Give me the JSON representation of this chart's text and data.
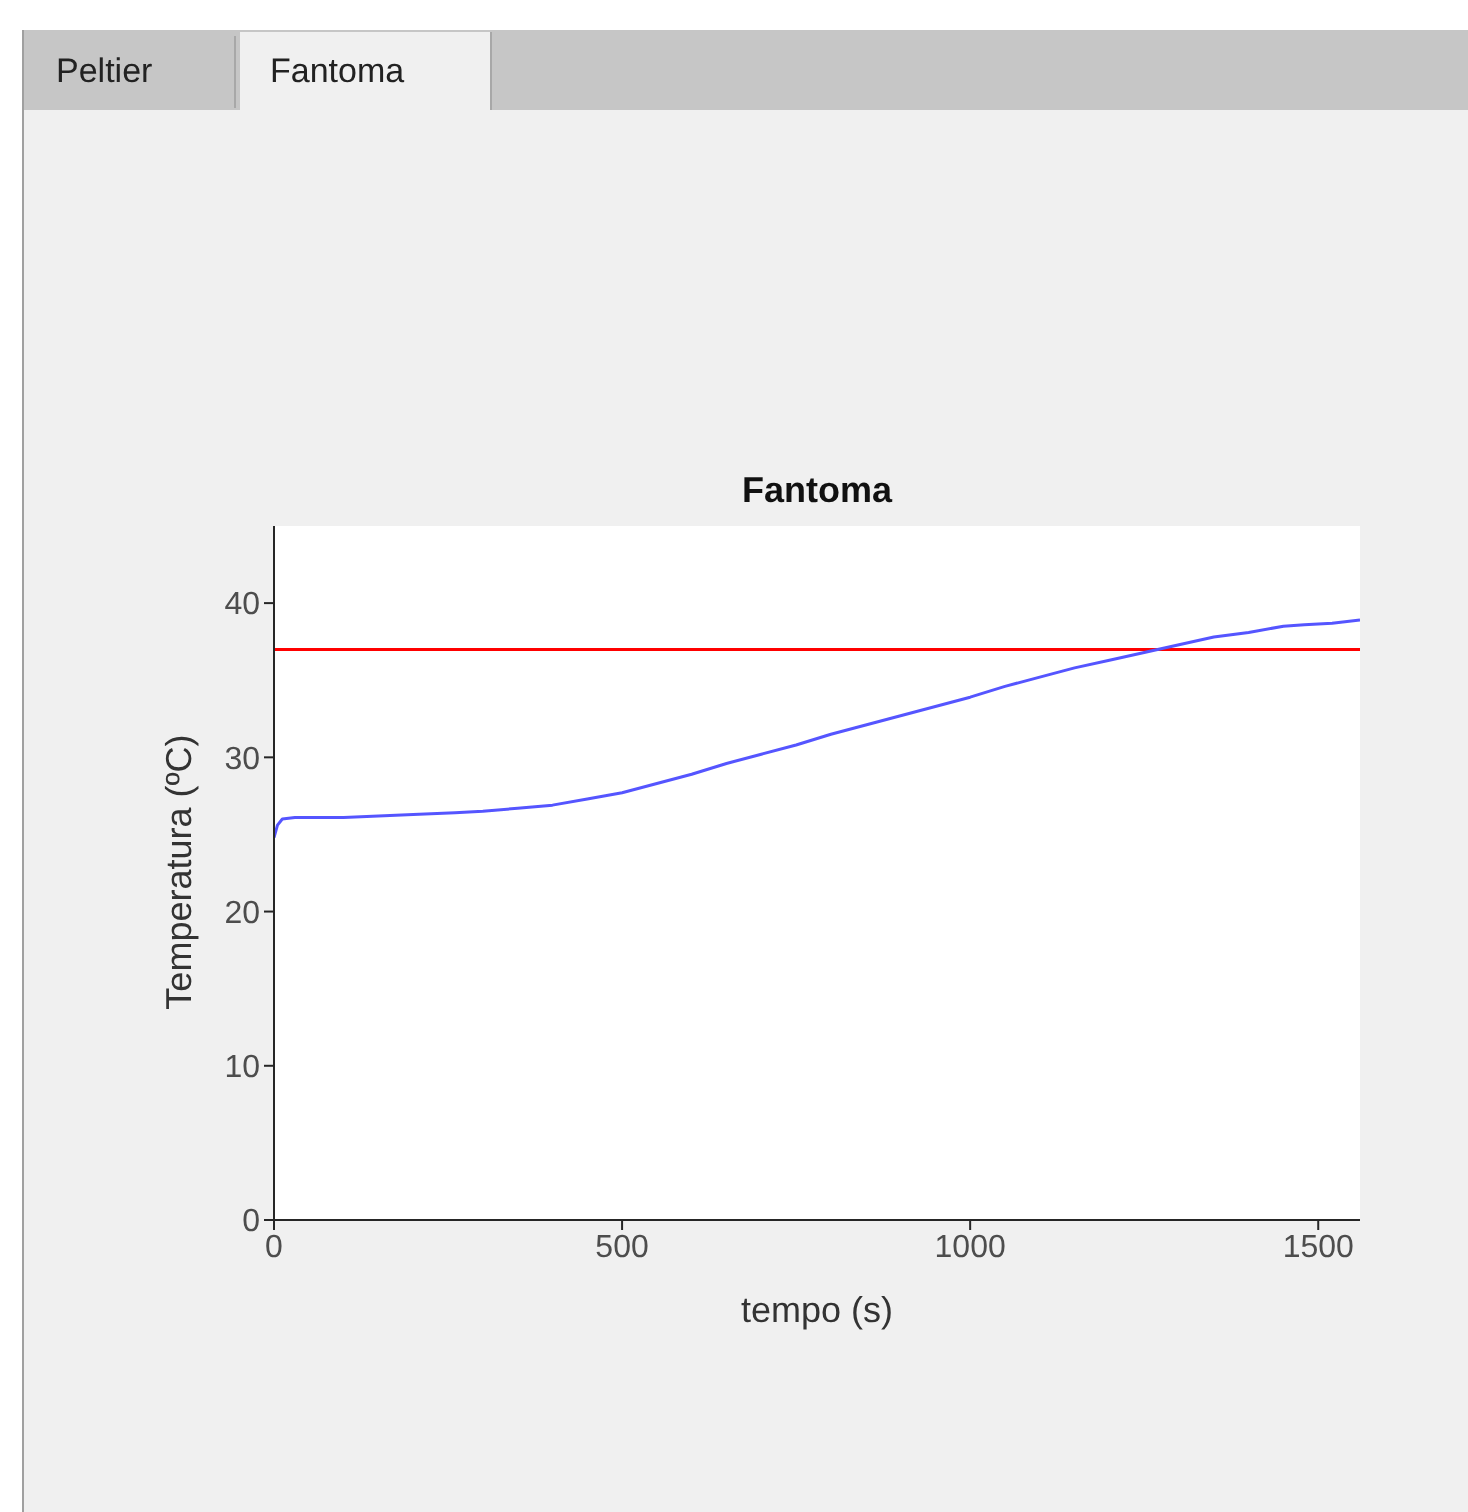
{
  "chart_data": {
    "type": "line",
    "title": "Fantoma",
    "xlabel": "tempo (s)",
    "ylabel": "Temperatura (ºC)",
    "annotations": [
      "Peltier",
      "Fantoma"
    ],
    "x": [
      0,
      5,
      12,
      30,
      100,
      200,
      260,
      300,
      350,
      400,
      450,
      500,
      550,
      600,
      650,
      700,
      750,
      800,
      850,
      900,
      950,
      1000,
      1050,
      1100,
      1150,
      1200,
      1250,
      1300,
      1350,
      1400,
      1450,
      1480,
      1520,
      1560
    ],
    "series": [
      {
        "color": "#5555ff",
        "values": [
          24.8,
          25.6,
          26.0,
          26.1,
          26.1,
          26.3,
          26.4,
          26.5,
          26.7,
          26.9,
          27.3,
          27.7,
          28.3,
          28.9,
          29.6,
          30.2,
          30.8,
          31.5,
          32.1,
          32.7,
          33.3,
          33.9,
          34.6,
          35.2,
          35.8,
          36.3,
          36.8,
          37.3,
          37.8,
          38.1,
          38.5,
          38.6,
          38.7,
          38.9
        ]
      }
    ],
    "xlim": [
      0,
      1560
    ],
    "xticks": [
      0,
      500,
      1000,
      1500
    ],
    "ylim": [
      0,
      45
    ],
    "yticks": [
      0,
      10,
      20,
      30,
      40
    ],
    "ref_lines": [
      {
        "axis": "y",
        "value": 37,
        "color": "#ff0000"
      }
    ],
    "marker": "none",
    "line_style": "solid"
  }
}
